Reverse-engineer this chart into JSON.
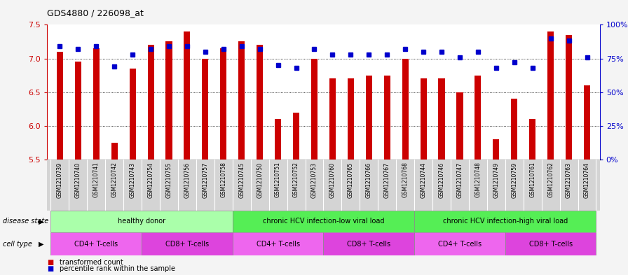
{
  "title": "GDS4880 / 226098_at",
  "samples": [
    "GSM1210739",
    "GSM1210740",
    "GSM1210741",
    "GSM1210742",
    "GSM1210743",
    "GSM1210754",
    "GSM1210755",
    "GSM1210756",
    "GSM1210757",
    "GSM1210758",
    "GSM1210745",
    "GSM1210750",
    "GSM1210751",
    "GSM1210752",
    "GSM1210753",
    "GSM1210760",
    "GSM1210765",
    "GSM1210766",
    "GSM1210767",
    "GSM1210768",
    "GSM1210744",
    "GSM1210746",
    "GSM1210747",
    "GSM1210748",
    "GSM1210749",
    "GSM1210759",
    "GSM1210761",
    "GSM1210762",
    "GSM1210763",
    "GSM1210764"
  ],
  "bar_values": [
    7.1,
    6.95,
    7.15,
    5.75,
    6.85,
    7.2,
    7.25,
    7.4,
    7.0,
    7.15,
    7.25,
    7.2,
    6.1,
    6.2,
    7.0,
    6.7,
    6.7,
    6.75,
    6.75,
    7.0,
    6.7,
    6.7,
    6.5,
    6.75,
    5.8,
    6.4,
    6.1,
    7.4,
    7.35,
    6.6
  ],
  "percentile_values": [
    84,
    82,
    84,
    69,
    78,
    82,
    84,
    84,
    80,
    82,
    84,
    82,
    70,
    68,
    82,
    78,
    78,
    78,
    78,
    82,
    80,
    80,
    76,
    80,
    68,
    72,
    68,
    90,
    88,
    76
  ],
  "ylim_left": [
    5.5,
    7.5
  ],
  "ylim_right": [
    0,
    100
  ],
  "yticks_left": [
    5.5,
    6.0,
    6.5,
    7.0,
    7.5
  ],
  "yticks_right": [
    0,
    25,
    50,
    75,
    100
  ],
  "ytick_labels_right": [
    "0%",
    "25%",
    "50%",
    "75%",
    "100%"
  ],
  "bar_color": "#cc0000",
  "dot_color": "#0000cc",
  "chart_bg": "#ffffff",
  "label_bg": "#d4d4d4",
  "disease_state_groups": [
    {
      "label": "healthy donor",
      "start": 0,
      "end": 9,
      "color": "#aaffaa"
    },
    {
      "label": "chronic HCV infection-low viral load",
      "start": 10,
      "end": 19,
      "color": "#55ee55"
    },
    {
      "label": "chronic HCV infection-high viral load",
      "start": 20,
      "end": 29,
      "color": "#55ee55"
    }
  ],
  "cell_type_groups": [
    {
      "label": "CD4+ T-cells",
      "start": 0,
      "end": 4,
      "color": "#ee66ee"
    },
    {
      "label": "CD8+ T-cells",
      "start": 5,
      "end": 9,
      "color": "#dd44dd"
    },
    {
      "label": "CD4+ T-cells",
      "start": 10,
      "end": 14,
      "color": "#ee66ee"
    },
    {
      "label": "CD8+ T-cells",
      "start": 15,
      "end": 19,
      "color": "#dd44dd"
    },
    {
      "label": "CD4+ T-cells",
      "start": 20,
      "end": 24,
      "color": "#ee66ee"
    },
    {
      "label": "CD8+ T-cells",
      "start": 25,
      "end": 29,
      "color": "#dd44dd"
    }
  ],
  "legend_items": [
    {
      "label": "transformed count",
      "color": "#cc0000"
    },
    {
      "label": "percentile rank within the sample",
      "color": "#0000cc"
    }
  ],
  "fig_bg": "#f4f4f4"
}
